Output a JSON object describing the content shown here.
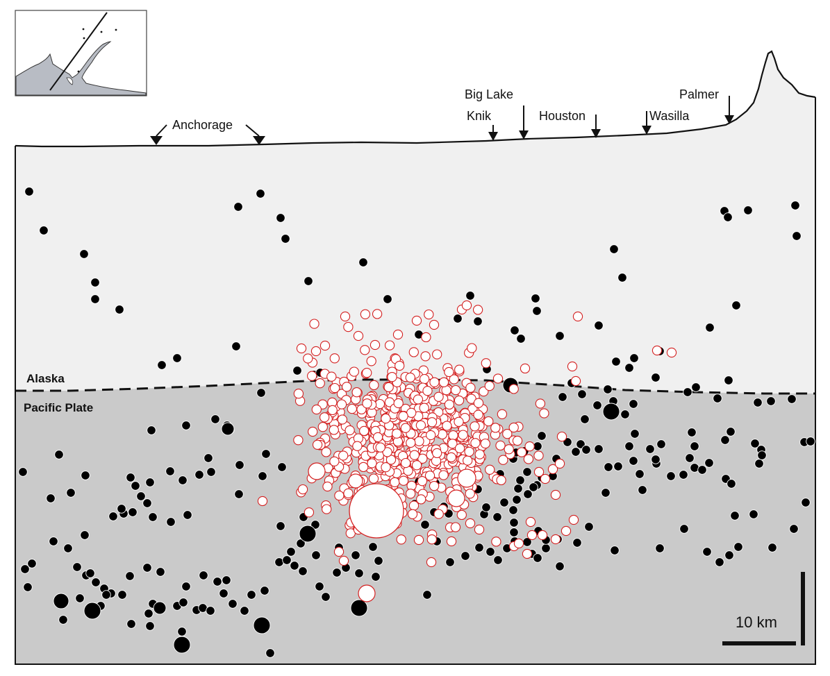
{
  "colors": {
    "crust": "#f0f0f0",
    "slab": "#cacaca",
    "map_water": "#ffffff",
    "map_land": "#b8bcc4",
    "black_event": "#000000",
    "red_event_stroke": "#d42020",
    "red_event_fill": "#ffffff"
  },
  "towns": [
    {
      "name": "Anchorage"
    },
    {
      "name": "Knik"
    },
    {
      "name": "Big Lake"
    },
    {
      "name": "Houston"
    },
    {
      "name": "Wasilla"
    },
    {
      "name": "Palmer"
    }
  ],
  "plates": {
    "upper": "Alaska",
    "lower": "Pacific Plate"
  },
  "scale_bar": {
    "label": "10 km"
  },
  "inset_map": {
    "description_icon": "location-map-icon"
  },
  "legend_symbols": {
    "background_seismicity": "black filled circles",
    "aftershock_sequence": "white circles with red outline"
  }
}
